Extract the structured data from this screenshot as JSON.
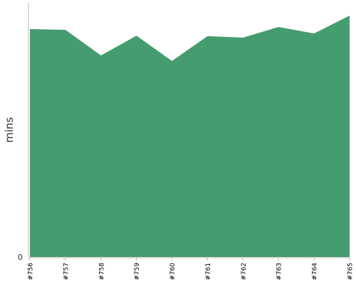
{
  "chart_data": {
    "type": "area",
    "x": [
      "#756",
      "#757",
      "#758",
      "#759",
      "#760",
      "#761",
      "#762",
      "#763",
      "#764",
      "#765"
    ],
    "series": [
      {
        "values": [
          94.4,
          94.1,
          83.5,
          91.7,
          81.2,
          91.5,
          90.9,
          95.3,
          92.6,
          100.0
        ]
      }
    ],
    "xlabel": "",
    "ylabel": "mins",
    "yticks": [
      0
    ],
    "ylim": [
      0,
      105
    ],
    "grid": false,
    "legend": "none",
    "colors": {
      "area": "#459c6e",
      "axis": "#bbbbbb"
    }
  }
}
